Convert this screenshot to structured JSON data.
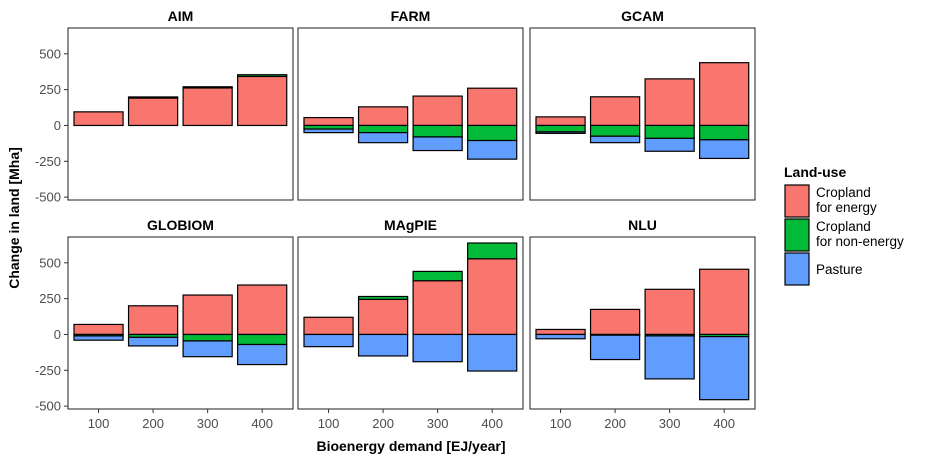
{
  "chart_data": {
    "type": "bar",
    "stacked": true,
    "facets": [
      "AIM",
      "FARM",
      "GCAM",
      "GLOBIOM",
      "MAgPIE",
      "NLU"
    ],
    "categories": [
      "100",
      "200",
      "300",
      "400"
    ],
    "xlabel": "Bioenergy demand [EJ/year]",
    "ylabel": "Change in land [Mha]",
    "ylim": [
      -520,
      680
    ],
    "yticks": [
      -500,
      -250,
      0,
      250,
      500
    ],
    "grid": false,
    "legend": {
      "title": "Land-use",
      "position": "right",
      "entries": [
        {
          "key": "energy",
          "label_lines": [
            "Cropland",
            " for energy"
          ],
          "color": "#F8766D"
        },
        {
          "key": "nonenergy",
          "label_lines": [
            "Cropland",
            " for non-energy"
          ],
          "color": "#00BA38"
        },
        {
          "key": "pasture",
          "label_lines": [
            "Pasture"
          ],
          "color": "#619CFF"
        }
      ]
    },
    "panels": [
      {
        "model": "AIM",
        "energy": [
          95,
          195,
          262,
          342
        ],
        "nonenergy": [
          0,
          4,
          8,
          12
        ],
        "pasture": [
          0,
          0,
          0,
          0
        ]
      },
      {
        "model": "FARM",
        "energy": [
          55,
          130,
          205,
          260
        ],
        "nonenergy": [
          -25,
          -50,
          -80,
          -105
        ],
        "pasture": [
          -25,
          -70,
          -95,
          -130
        ]
      },
      {
        "model": "GCAM",
        "energy": [
          60,
          200,
          325,
          438
        ],
        "nonenergy": [
          -45,
          -75,
          -90,
          -100
        ],
        "pasture": [
          -10,
          -45,
          -90,
          -130
        ]
      },
      {
        "model": "GLOBIOM",
        "energy": [
          70,
          200,
          275,
          345
        ],
        "nonenergy": [
          -10,
          -20,
          -45,
          -70
        ],
        "pasture": [
          -30,
          -60,
          -110,
          -140
        ]
      },
      {
        "model": "MAgPIE",
        "energy": [
          120,
          245,
          375,
          528
        ],
        "nonenergy": [
          0,
          20,
          65,
          110
        ],
        "pasture": [
          -85,
          -150,
          -190,
          -255
        ]
      },
      {
        "model": "NLU",
        "energy": [
          35,
          175,
          315,
          455
        ],
        "nonenergy": [
          0,
          -5,
          -10,
          -15
        ],
        "pasture": [
          -30,
          -170,
          -300,
          -440
        ]
      }
    ]
  }
}
